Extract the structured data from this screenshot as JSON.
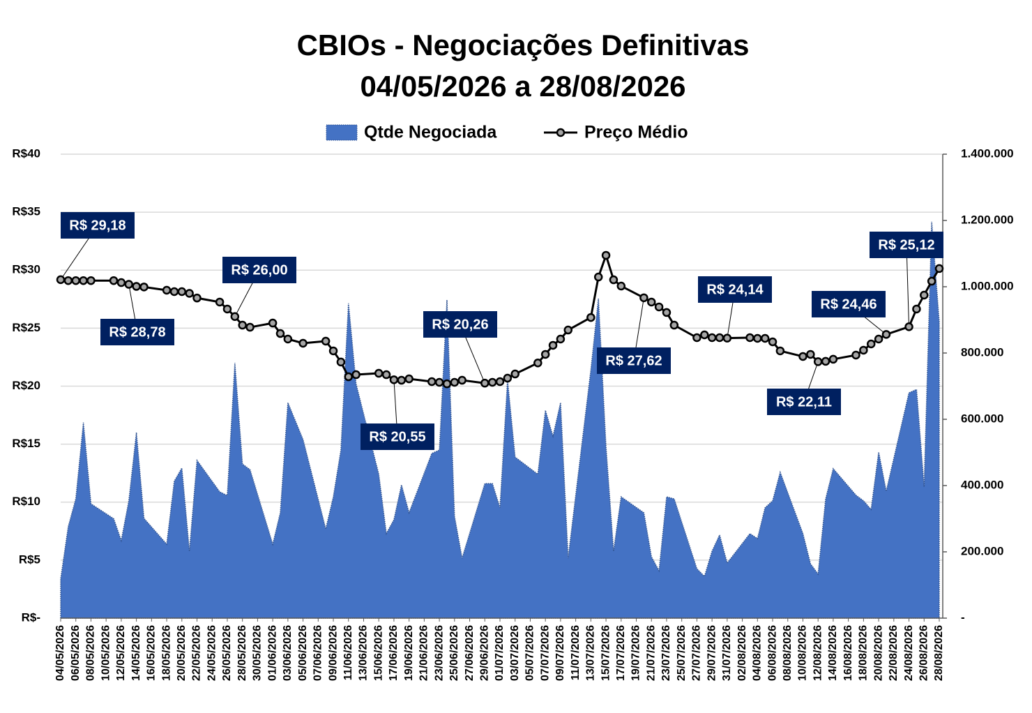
{
  "chart_data": {
    "type": "area-line",
    "title": "CBIOs - Negociações Definitivas",
    "subtitle": "04/05/2026 a 28/08/2026",
    "x": [
      "04/05/2026",
      "05/05/2026",
      "06/05/2026",
      "07/05/2026",
      "08/05/2026",
      "11/05/2026",
      "12/05/2026",
      "13/05/2026",
      "14/05/2026",
      "15/05/2026",
      "18/05/2026",
      "19/05/2026",
      "20/05/2026",
      "21/05/2026",
      "22/05/2026",
      "25/05/2026",
      "26/05/2026",
      "27/05/2026",
      "28/05/2026",
      "29/05/2026",
      "01/06/2026",
      "02/06/2026",
      "03/06/2026",
      "05/06/2026",
      "08/06/2026",
      "09/06/2026",
      "10/06/2026",
      "11/06/2026",
      "12/06/2026",
      "15/06/2026",
      "16/06/2026",
      "17/06/2026",
      "18/06/2026",
      "19/06/2026",
      "22/06/2026",
      "23/06/2026",
      "24/06/2026",
      "25/06/2026",
      "26/06/2026",
      "29/06/2026",
      "30/06/2026",
      "01/07/2026",
      "02/07/2026",
      "03/07/2026",
      "06/07/2026",
      "07/07/2026",
      "08/07/2026",
      "09/07/2026",
      "10/07/2026",
      "13/07/2026",
      "14/07/2026",
      "15/07/2026",
      "16/07/2026",
      "17/07/2026",
      "20/07/2026",
      "21/07/2026",
      "22/07/2026",
      "23/07/2026",
      "24/07/2026",
      "27/07/2026",
      "28/07/2026",
      "29/07/2026",
      "30/07/2026",
      "31/07/2026",
      "03/08/2026",
      "04/08/2026",
      "05/08/2026",
      "06/08/2026",
      "07/08/2026",
      "10/08/2026",
      "11/08/2026",
      "12/08/2026",
      "13/08/2026",
      "14/08/2026",
      "17/08/2026",
      "18/08/2026",
      "19/08/2026",
      "20/08/2026",
      "21/08/2026",
      "24/08/2026",
      "25/08/2026",
      "26/08/2026",
      "27/08/2026",
      "28/08/2026"
    ],
    "series": [
      {
        "name": "Qtde Negociada",
        "type": "area",
        "axis": "y2",
        "color": "#4472c4",
        "values": [
          118000,
          276000,
          360000,
          590000,
          345000,
          300000,
          234000,
          354000,
          560000,
          301000,
          223000,
          413000,
          453000,
          202000,
          476000,
          381000,
          370000,
          770000,
          465000,
          448000,
          223000,
          318000,
          650000,
          539000,
          269000,
          366000,
          507000,
          950000,
          707000,
          434000,
          255000,
          297000,
          402000,
          318000,
          497000,
          507000,
          960000,
          307000,
          181000,
          406000,
          406000,
          333000,
          718000,
          486000,
          434000,
          627000,
          549000,
          650000,
          181000,
          749000,
          964000,
          518000,
          202000,
          366000,
          318000,
          185000,
          143000,
          366000,
          360000,
          149000,
          126000,
          202000,
          251000,
          166000,
          255000,
          240000,
          333000,
          354000,
          440000,
          255000,
          164000,
          133000,
          360000,
          451000,
          371000,
          354000,
          328000,
          501000,
          383000,
          680000,
          690000,
          396000,
          1196000,
          893000
        ]
      },
      {
        "name": "Preço Médio",
        "type": "line",
        "axis": "y",
        "color": "#000000",
        "marker_color": "#a6a6a6",
        "label_color": "#002060",
        "values": [
          29.18,
          29.1,
          29.1,
          29.1,
          29.1,
          29.1,
          28.93,
          28.78,
          28.6,
          28.55,
          28.27,
          28.15,
          28.15,
          28.0,
          27.6,
          27.25,
          26.65,
          26.0,
          25.26,
          25.08,
          25.44,
          24.54,
          24.06,
          23.7,
          23.88,
          23.04,
          22.08,
          20.81,
          20.99,
          21.11,
          20.99,
          20.55,
          20.51,
          20.63,
          20.39,
          20.33,
          20.2,
          20.33,
          20.51,
          20.26,
          20.33,
          20.39,
          20.69,
          21.05,
          22.0,
          22.74,
          23.52,
          24.06,
          24.84,
          25.92,
          29.41,
          31.28,
          29.17,
          28.63,
          27.62,
          27.25,
          26.83,
          26.35,
          25.26,
          24.18,
          24.42,
          24.18,
          24.18,
          24.14,
          24.18,
          24.12,
          24.12,
          23.82,
          23.04,
          22.56,
          22.74,
          22.11,
          22.14,
          22.32,
          22.68,
          23.1,
          23.64,
          24.06,
          24.46,
          25.12,
          26.65,
          27.85,
          29.05,
          30.14
        ],
        "value_labels": [
          "R$ 29,18",
          null,
          null,
          null,
          null,
          null,
          null,
          "R$ 28,78",
          null,
          null,
          null,
          null,
          null,
          null,
          null,
          null,
          null,
          "R$ 26,00",
          null,
          null,
          null,
          null,
          null,
          null,
          null,
          null,
          null,
          null,
          null,
          null,
          null,
          "R$ 20,55",
          null,
          null,
          null,
          null,
          null,
          null,
          null,
          "R$ 20,26",
          null,
          null,
          null,
          null,
          null,
          null,
          null,
          null,
          null,
          null,
          null,
          null,
          null,
          null,
          "R$ 27,62",
          null,
          null,
          null,
          null,
          null,
          null,
          null,
          null,
          "R$ 24,14",
          null,
          null,
          null,
          null,
          null,
          null,
          null,
          "R$ 22,11",
          null,
          null,
          null,
          null,
          null,
          null,
          "R$ 24,46",
          "R$ 25,12",
          null,
          null,
          null,
          null
        ]
      }
    ],
    "xlim": [
      "04/05/2026",
      "28/08/2026"
    ],
    "xticks": [
      "04/05/2026",
      "06/05/2026",
      "08/05/2026",
      "10/05/2026",
      "12/05/2026",
      "14/05/2026",
      "16/05/2026",
      "18/05/2026",
      "20/05/2026",
      "22/05/2026",
      "24/05/2026",
      "26/05/2026",
      "28/05/2026",
      "30/05/2026",
      "01/06/2026",
      "03/06/2026",
      "05/06/2026",
      "07/06/2026",
      "09/06/2026",
      "11/06/2026",
      "13/06/2026",
      "15/06/2026",
      "17/06/2026",
      "19/06/2026",
      "21/06/2026",
      "23/06/2026",
      "25/06/2026",
      "27/06/2026",
      "29/06/2026",
      "01/07/2026",
      "03/07/2026",
      "05/07/2026",
      "07/07/2026",
      "09/07/2026",
      "11/07/2026",
      "13/07/2026",
      "15/07/2026",
      "17/07/2026",
      "19/07/2026",
      "21/07/2026",
      "23/07/2026",
      "25/07/2026",
      "27/07/2026",
      "29/07/2026",
      "31/07/2026",
      "02/08/2026",
      "04/08/2026",
      "06/08/2026",
      "08/08/2026",
      "10/08/2026",
      "12/08/2026",
      "14/08/2026",
      "16/08/2026",
      "18/08/2026",
      "20/08/2026",
      "22/08/2026",
      "24/08/2026",
      "26/08/2026",
      "28/08/2026"
    ],
    "ylim": [
      0,
      40
    ],
    "yticks": [
      {
        "value": 0,
        "label": "R$-"
      },
      {
        "value": 5,
        "label": "R$5"
      },
      {
        "value": 10,
        "label": "R$10"
      },
      {
        "value": 15,
        "label": "R$15"
      },
      {
        "value": 20,
        "label": "R$20"
      },
      {
        "value": 25,
        "label": "R$25"
      },
      {
        "value": 30,
        "label": "R$30"
      },
      {
        "value": 35,
        "label": "R$35"
      },
      {
        "value": 40,
        "label": "R$40"
      }
    ],
    "y2lim": [
      0,
      1400000
    ],
    "y2ticks": [
      {
        "value": 0,
        "label": "-"
      },
      {
        "value": 200000,
        "label": "200.000"
      },
      {
        "value": 400000,
        "label": "400.000"
      },
      {
        "value": 600000,
        "label": "600.000"
      },
      {
        "value": 800000,
        "label": "800.000"
      },
      {
        "value": 1000000,
        "label": "1.000.000"
      },
      {
        "value": 1200000,
        "label": "1.200.000"
      },
      {
        "value": 1400000,
        "label": "1.400.000"
      }
    ],
    "grid": true,
    "legend": "top"
  }
}
